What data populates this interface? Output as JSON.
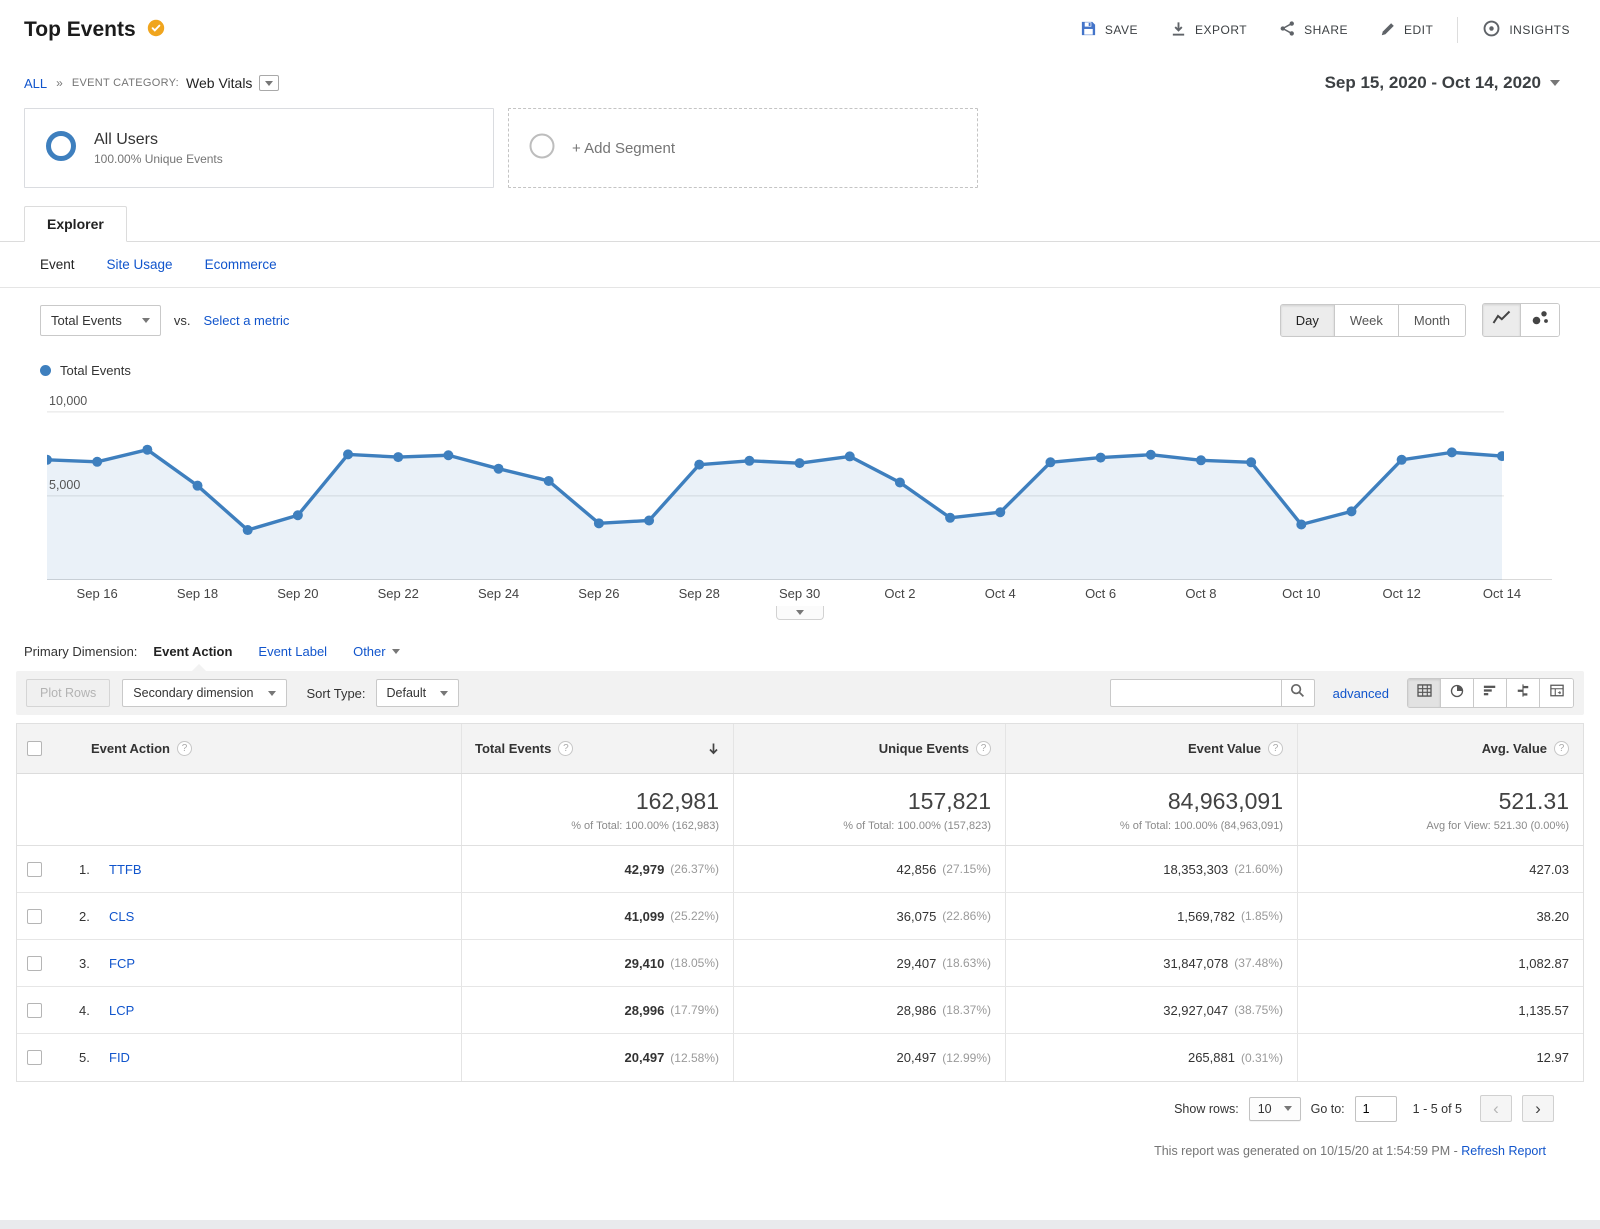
{
  "colors": {
    "link": "#1155cc",
    "chart_line": "#3e7fbe",
    "badge": "#f0a51e"
  },
  "header": {
    "title": "Top Events",
    "actions": [
      {
        "label": "SAVE"
      },
      {
        "label": "EXPORT"
      },
      {
        "label": "SHARE"
      },
      {
        "label": "EDIT"
      },
      {
        "label": "INSIGHTS"
      }
    ]
  },
  "breadcrumb": {
    "all": "ALL",
    "separator": "»",
    "category_label": "EVENT CATEGORY:",
    "category_value": "Web Vitals"
  },
  "date_range": "Sep 15, 2020 - Oct 14, 2020",
  "segments": {
    "all_users": {
      "title": "All Users",
      "subtitle": "100.00% Unique Events"
    },
    "add_label": "+ Add Segment"
  },
  "explorer_tab": "Explorer",
  "subtabs": [
    "Event",
    "Site Usage",
    "Ecommerce"
  ],
  "metric_bar": {
    "metric": "Total Events",
    "vs": "vs.",
    "select": "Select a metric",
    "granularity": [
      "Day",
      "Week",
      "Month"
    ],
    "active_granularity": "Day"
  },
  "legend_label": "Total Events",
  "chart_data": {
    "type": "line",
    "title": "Total Events",
    "x": [
      "Sep 15",
      "Sep 16",
      "Sep 17",
      "Sep 18",
      "Sep 19",
      "Sep 20",
      "Sep 21",
      "Sep 22",
      "Sep 23",
      "Sep 24",
      "Sep 25",
      "Sep 26",
      "Sep 27",
      "Sep 28",
      "Sep 29",
      "Sep 30",
      "Oct 1",
      "Oct 2",
      "Oct 3",
      "Oct 4",
      "Oct 5",
      "Oct 6",
      "Oct 7",
      "Oct 8",
      "Oct 9",
      "Oct 10",
      "Oct 11",
      "Oct 12",
      "Oct 13",
      "Oct 14"
    ],
    "series": [
      {
        "name": "Total Events",
        "values": [
          7150,
          7030,
          7750,
          5610,
          2970,
          3850,
          7470,
          7310,
          7420,
          6620,
          5890,
          3370,
          3540,
          6860,
          7090,
          6950,
          7350,
          5800,
          3700,
          4030,
          7000,
          7280,
          7450,
          7120,
          7000,
          3300,
          4080,
          7150,
          7590,
          7370
        ]
      }
    ],
    "x_tick_labels": [
      "Sep 16",
      "Sep 18",
      "Sep 20",
      "Sep 22",
      "Sep 24",
      "Sep 26",
      "Sep 28",
      "Sep 30",
      "Oct 2",
      "Oct 4",
      "Oct 6",
      "Oct 8",
      "Oct 10",
      "Oct 12",
      "Oct 14"
    ],
    "y_ticks": [
      {
        "value": 5000,
        "label": "5,000"
      },
      {
        "value": 10000,
        "label": "10,000"
      }
    ],
    "ylim": [
      0,
      11300
    ],
    "grid": true,
    "area_fill": true,
    "legend_position": "top-left",
    "xlabel": "",
    "ylabel": ""
  },
  "dimension_bar": {
    "label": "Primary Dimension:",
    "options": [
      "Event Action",
      "Event Label",
      "Other"
    ],
    "active": "Event Action"
  },
  "toolbar": {
    "plot_rows": "Plot Rows",
    "secondary_dimension": "Secondary dimension",
    "sort_type_label": "Sort Type:",
    "sort_type_value": "Default",
    "advanced": "advanced",
    "search_value": ""
  },
  "table": {
    "columns": [
      "Event Action",
      "Total Events",
      "Unique Events",
      "Event Value",
      "Avg. Value"
    ],
    "summary": {
      "total_events": "162,981",
      "total_events_sub": "% of Total: 100.00% (162,983)",
      "unique_events": "157,821",
      "unique_events_sub": "% of Total: 100.00% (157,823)",
      "event_value": "84,963,091",
      "event_value_sub": "% of Total: 100.00% (84,963,091)",
      "avg_value": "521.31",
      "avg_value_sub": "Avg for View: 521.30 (0.00%)"
    },
    "rows": [
      {
        "num": "1.",
        "action": "TTFB",
        "total": "42,979",
        "total_pct": "(26.37%)",
        "unique": "42,856",
        "unique_pct": "(27.15%)",
        "value": "18,353,303",
        "value_pct": "(21.60%)",
        "avg": "427.03"
      },
      {
        "num": "2.",
        "action": "CLS",
        "total": "41,099",
        "total_pct": "(25.22%)",
        "unique": "36,075",
        "unique_pct": "(22.86%)",
        "value": "1,569,782",
        "value_pct": "(1.85%)",
        "avg": "38.20"
      },
      {
        "num": "3.",
        "action": "FCP",
        "total": "29,410",
        "total_pct": "(18.05%)",
        "unique": "29,407",
        "unique_pct": "(18.63%)",
        "value": "31,847,078",
        "value_pct": "(37.48%)",
        "avg": "1,082.87"
      },
      {
        "num": "4.",
        "action": "LCP",
        "total": "28,996",
        "total_pct": "(17.79%)",
        "unique": "28,986",
        "unique_pct": "(18.37%)",
        "value": "32,927,047",
        "value_pct": "(38.75%)",
        "avg": "1,135.57"
      },
      {
        "num": "5.",
        "action": "FID",
        "total": "20,497",
        "total_pct": "(12.58%)",
        "unique": "20,497",
        "unique_pct": "(12.99%)",
        "value": "265,881",
        "value_pct": "(0.31%)",
        "avg": "12.97"
      }
    ]
  },
  "footer": {
    "show_rows_label": "Show rows:",
    "show_rows_value": "10",
    "goto_label": "Go to:",
    "goto_value": "1",
    "range": "1 - 5 of 5"
  },
  "generated_text": "This report was generated on 10/15/20 at 1:54:59 PM -",
  "refresh_link": "Refresh Report"
}
